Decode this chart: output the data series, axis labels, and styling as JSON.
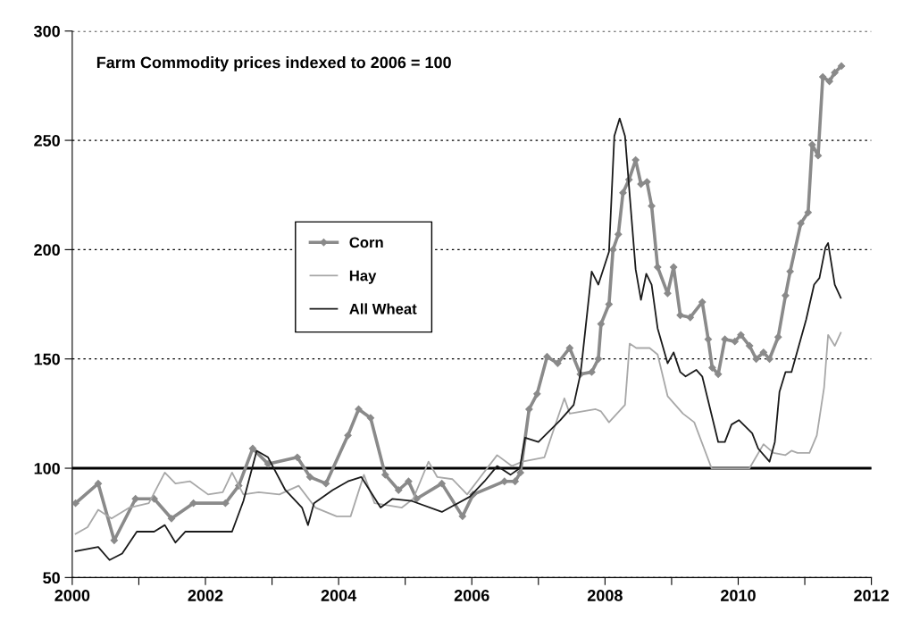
{
  "chart_data": {
    "type": "line",
    "title": "Farm Commodity prices indexed to 2006 = 100",
    "xlim": [
      2000,
      2012
    ],
    "xticks": [
      2000,
      {
        "value": 2001,
        "label": null
      },
      2002,
      {
        "value": 2003,
        "label": null
      },
      2004,
      {
        "value": 2005,
        "label": null
      },
      2006,
      {
        "value": 2007,
        "label": null
      },
      2008,
      {
        "value": 2009,
        "label": null
      },
      2010,
      {
        "value": 2011,
        "label": null
      },
      2012
    ],
    "ylim": [
      50,
      300
    ],
    "yticks": [
      50,
      100,
      150,
      200,
      250,
      300
    ],
    "grid": "y",
    "legend": "center left",
    "ref_lines": [
      {
        "axis": "y",
        "value": 100,
        "color": "#000000",
        "line_style": "solid"
      }
    ],
    "series": [
      {
        "name": "Corn",
        "color": "#8a8a8a",
        "marker": "diamond",
        "x": [
          2000.05,
          2000.39,
          2000.63,
          2000.95,
          2001.23,
          2001.49,
          2001.82,
          2002.3,
          2002.5,
          2002.71,
          2002.94,
          2003.38,
          2003.57,
          2003.81,
          2004.14,
          2004.3,
          2004.48,
          2004.7,
          2004.9,
          2005.05,
          2005.17,
          2005.55,
          2005.86,
          2006.02,
          2006.49,
          2006.65,
          2006.73,
          2006.86,
          2006.98,
          2007.13,
          2007.29,
          2007.47,
          2007.63,
          2007.8,
          2007.9,
          2007.94,
          2008.06,
          2008.12,
          2008.2,
          2008.27,
          2008.36,
          2008.46,
          2008.54,
          2008.63,
          2008.7,
          2008.79,
          2008.94,
          2009.03,
          2009.13,
          2009.28,
          2009.46,
          2009.55,
          2009.61,
          2009.7,
          2009.8,
          2009.95,
          2010.04,
          2010.17,
          2010.27,
          2010.38,
          2010.47,
          2010.6,
          2010.71,
          2010.78,
          2010.94,
          2011.05,
          2011.11,
          2011.2,
          2011.27,
          2011.37,
          2011.45,
          2011.55
        ],
        "values": [
          84,
          93,
          67,
          86,
          86,
          77,
          84,
          84,
          92,
          109,
          102,
          105,
          96,
          93,
          115,
          127,
          123,
          97,
          90,
          94,
          86,
          93,
          78,
          88,
          94,
          94,
          98,
          127,
          134,
          151,
          148,
          155,
          143,
          144,
          150,
          166,
          175,
          200,
          207,
          226,
          232,
          241,
          230,
          231,
          220,
          192,
          180,
          192,
          170,
          169,
          176,
          159,
          146,
          143,
          159,
          158,
          161,
          156,
          150,
          153,
          150,
          160,
          179,
          190,
          212,
          217,
          248,
          243,
          279,
          277,
          281,
          284
        ]
      },
      {
        "name": "Hay",
        "color": "#a8a8a8",
        "x": [
          2000.05,
          2000.23,
          2000.39,
          2000.59,
          2000.86,
          2001.15,
          2001.39,
          2001.55,
          2001.77,
          2002.04,
          2002.26,
          2002.4,
          2002.57,
          2002.8,
          2003.11,
          2003.4,
          2003.65,
          2003.97,
          2004.18,
          2004.38,
          2004.54,
          2004.95,
          2005.12,
          2005.35,
          2005.48,
          2005.71,
          2005.93,
          2006.13,
          2006.38,
          2006.6,
          2006.76,
          2007.09,
          2007.2,
          2007.39,
          2007.47,
          2007.86,
          2007.94,
          2008.06,
          2008.3,
          2008.37,
          2008.47,
          2008.67,
          2008.79,
          2008.94,
          2009.17,
          2009.34,
          2009.6,
          2009.81,
          2010.04,
          2010.17,
          2010.38,
          2010.53,
          2010.71,
          2010.8,
          2010.89,
          2011.07,
          2011.18,
          2011.29,
          2011.35,
          2011.45,
          2011.54
        ],
        "values": [
          70,
          73,
          81,
          77,
          82,
          84,
          98,
          93,
          94,
          88,
          89,
          98,
          88,
          89,
          88,
          92,
          82,
          78,
          78,
          97,
          84,
          82,
          86,
          103,
          96,
          95,
          88,
          96,
          106,
          101,
          103,
          105,
          115,
          132,
          125,
          127,
          126,
          121,
          129,
          157,
          155,
          155,
          152,
          133,
          125,
          121,
          100,
          100,
          100,
          100,
          111,
          107,
          106,
          108,
          107,
          107,
          115,
          137,
          161,
          156,
          162
        ]
      },
      {
        "name": "All Wheat",
        "color": "#1a1a1a",
        "x": [
          2000.05,
          2000.39,
          2000.56,
          2000.75,
          2000.97,
          2001.23,
          2001.39,
          2001.55,
          2001.7,
          2002.13,
          2002.4,
          2002.57,
          2002.77,
          2002.94,
          2003.2,
          2003.45,
          2003.54,
          2003.63,
          2003.91,
          2004.14,
          2004.34,
          2004.63,
          2004.81,
          2005.1,
          2005.55,
          2005.97,
          2006.19,
          2006.38,
          2006.58,
          2006.72,
          2006.8,
          2007.0,
          2007.33,
          2007.53,
          2007.63,
          2007.65,
          2007.8,
          2007.9,
          2008.06,
          2008.14,
          2008.22,
          2008.3,
          2008.46,
          2008.54,
          2008.62,
          2008.7,
          2008.79,
          2008.94,
          2009.03,
          2009.13,
          2009.21,
          2009.37,
          2009.46,
          2009.7,
          2009.8,
          2009.9,
          2010.01,
          2010.21,
          2010.3,
          2010.47,
          2010.55,
          2010.62,
          2010.71,
          2010.8,
          2011.02,
          2011.14,
          2011.22,
          2011.31,
          2011.35,
          2011.45,
          2011.54
        ],
        "values": [
          62,
          64,
          58,
          61,
          71,
          71,
          74,
          66,
          71,
          71,
          71,
          85,
          108,
          105,
          90,
          82,
          74,
          84,
          90,
          94,
          96,
          82,
          86,
          85,
          80,
          87,
          94,
          101,
          97,
          100,
          114,
          112,
          122,
          129,
          143,
          148,
          190,
          184,
          199,
          252,
          260,
          252,
          191,
          177,
          189,
          184,
          164,
          148,
          153,
          144,
          142,
          145,
          142,
          112,
          112,
          120,
          122,
          116,
          109,
          103,
          112,
          135,
          144,
          144,
          168,
          184,
          187,
          201,
          203,
          184,
          178
        ]
      }
    ]
  }
}
